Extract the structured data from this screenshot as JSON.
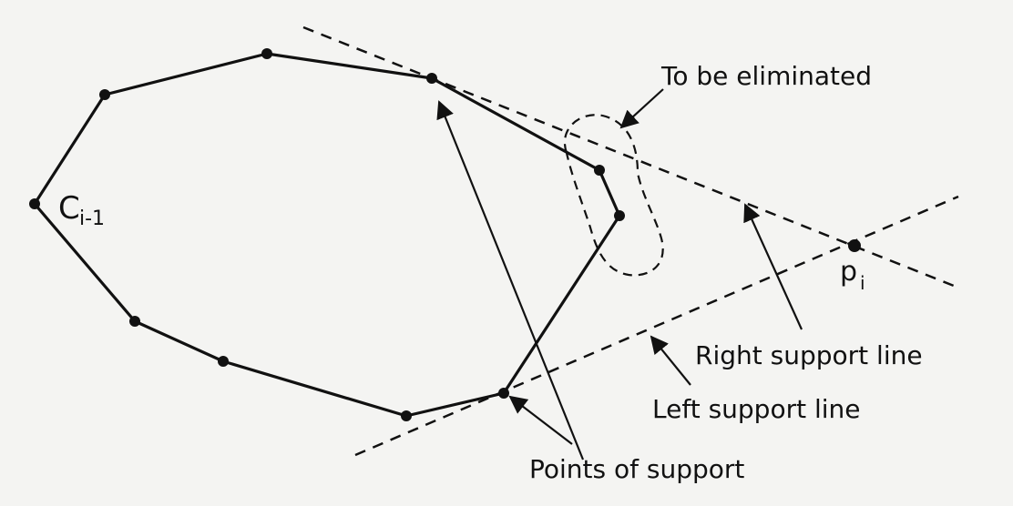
{
  "diagram": {
    "labels": {
      "hull_vertex": "C",
      "hull_vertex_sub": "i-1",
      "new_point": "p",
      "new_point_sub": "i",
      "to_be_eliminated": "To be eliminated",
      "right_support_line": "Right support line",
      "left_support_line": "Left support line",
      "points_of_support": "Points of support"
    },
    "colors": {
      "ink": "#111111",
      "paper": "#f4f4f2"
    }
  }
}
